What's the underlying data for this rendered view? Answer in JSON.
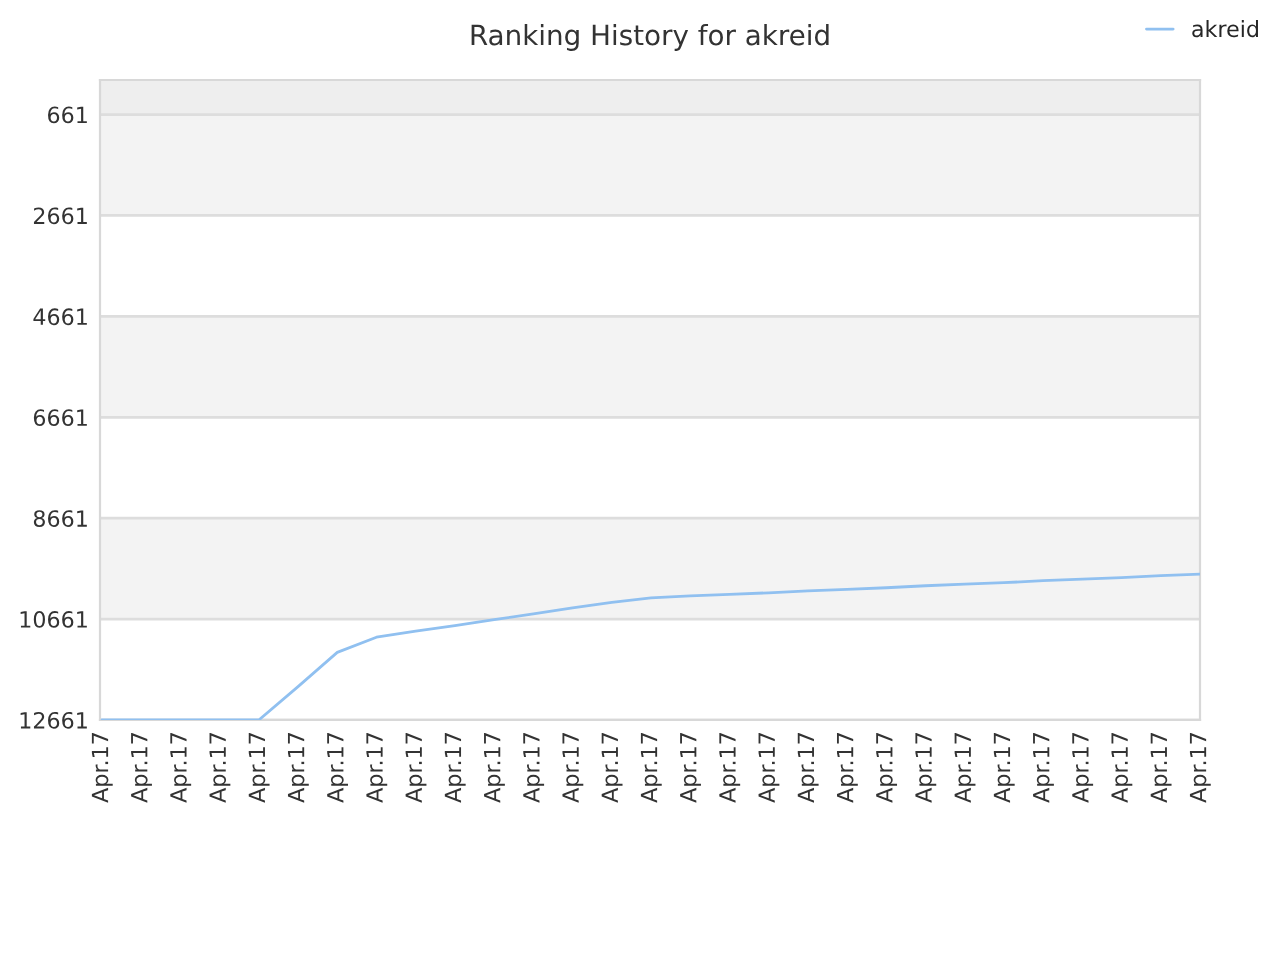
{
  "chart_data": {
    "type": "line",
    "title": "Ranking History for akreid",
    "categories": [
      "Apr.17",
      "Apr.17",
      "Apr.17",
      "Apr.17",
      "Apr.17",
      "Apr.17",
      "Apr.17",
      "Apr.17",
      "Apr.17",
      "Apr.17",
      "Apr.17",
      "Apr.17",
      "Apr.17",
      "Apr.17",
      "Apr.17",
      "Apr.17",
      "Apr.17",
      "Apr.17",
      "Apr.17",
      "Apr.17",
      "Apr.17",
      "Apr.17",
      "Apr.17",
      "Apr.17",
      "Apr.17",
      "Apr.17",
      "Apr.17",
      "Apr.17",
      "Apr.17"
    ],
    "series": [
      {
        "name": "akreid",
        "color": "#90c0f0",
        "values": [
          12661,
          12661,
          12661,
          12661,
          12661,
          12000,
          11320,
          11020,
          10900,
          10790,
          10670,
          10560,
          10440,
          10330,
          10240,
          10200,
          10170,
          10140,
          10100,
          10070,
          10040,
          10000,
          9970,
          9940,
          9900,
          9870,
          9840,
          9800,
          9770
        ]
      }
    ],
    "ylim": [
      12661,
      -24
    ],
    "yticks": [
      661,
      2661,
      4661,
      6661,
      8661,
      10661,
      12661
    ],
    "bands": [
      {
        "axis": "y",
        "from": -24,
        "to": 661,
        "color": "#eeeeee"
      },
      {
        "axis": "y",
        "from": 661,
        "to": 2661,
        "color": "#f3f3f3"
      },
      {
        "axis": "y",
        "from": 4661,
        "to": 6661,
        "color": "#f3f3f3"
      },
      {
        "axis": "y",
        "from": 8661,
        "to": 10661,
        "color": "#f3f3f3"
      }
    ],
    "grid": "y",
    "legend": "top right",
    "marker": "none",
    "line_style": "solid"
  }
}
